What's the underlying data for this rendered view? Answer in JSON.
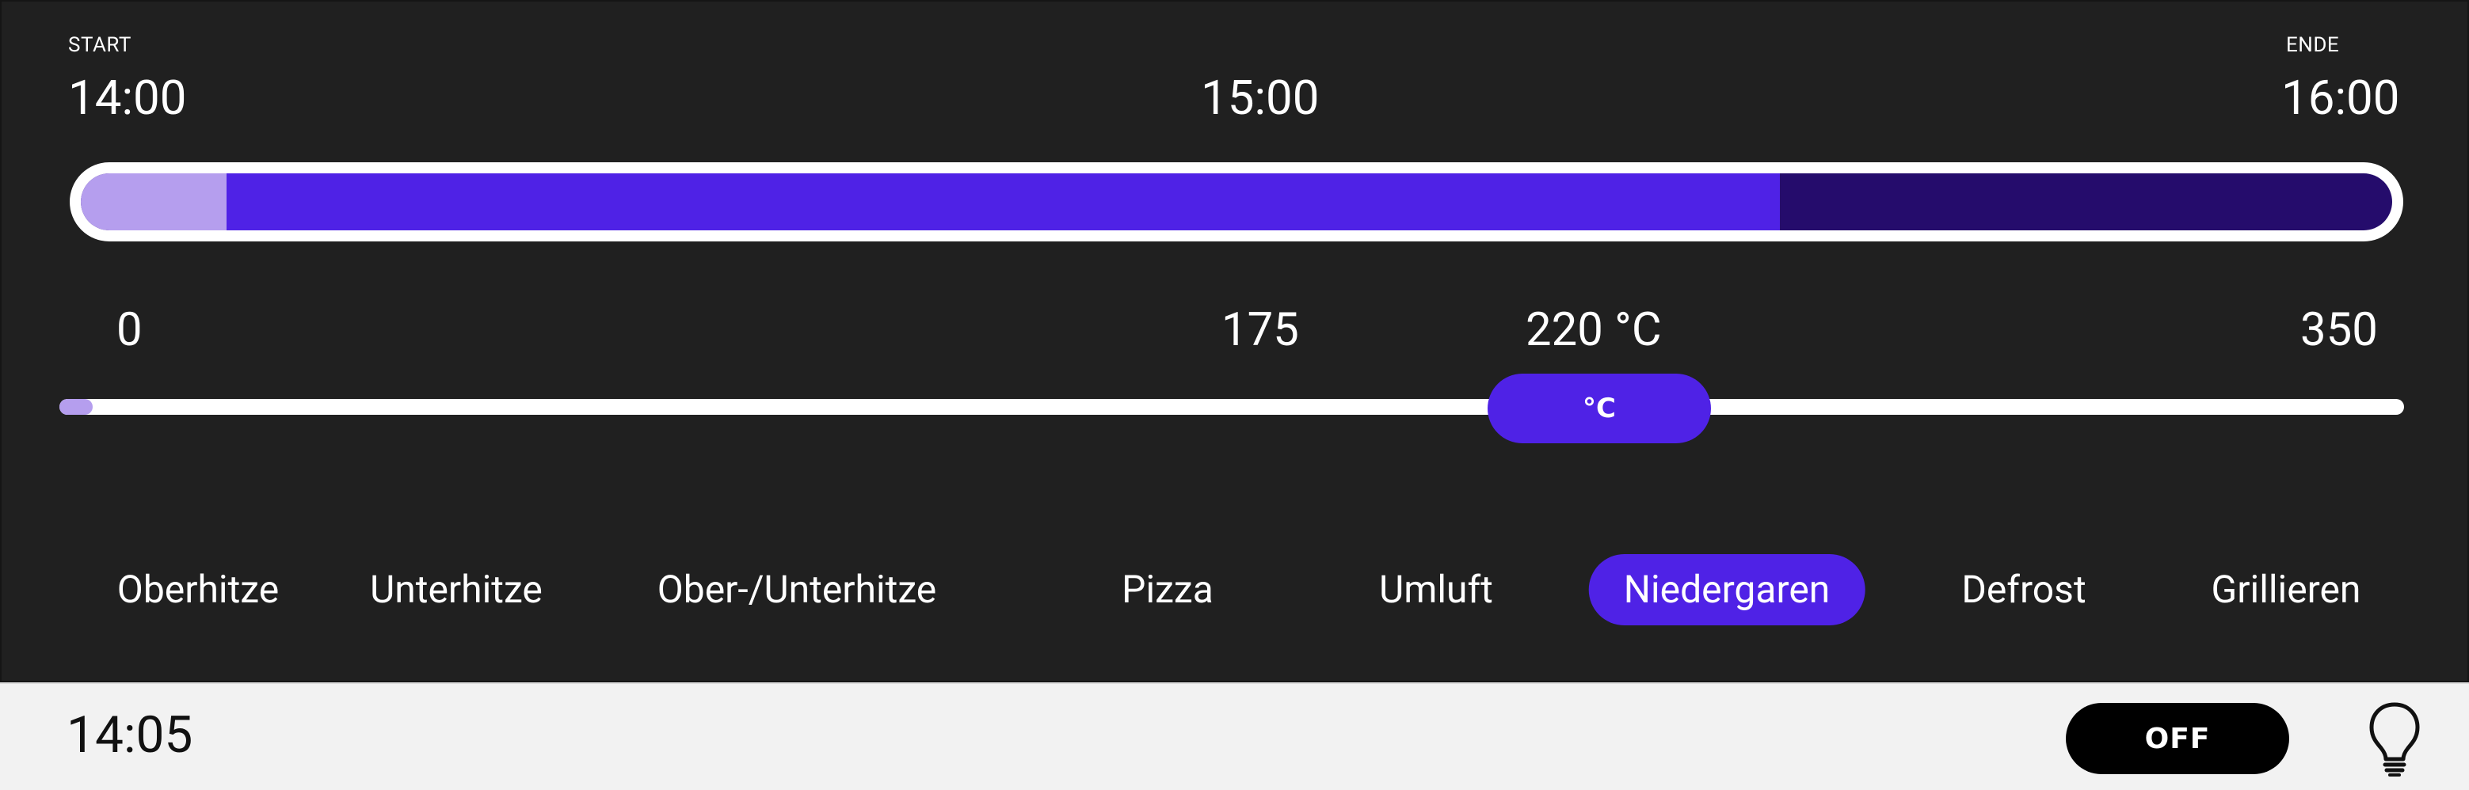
{
  "program": {
    "start_label": "START",
    "end_label": "ENDE",
    "start_time": "14:00",
    "mid_time": "15:00",
    "end_time": "16:00",
    "progress": {
      "elapsed_fraction": 0.063,
      "scheduled_end_fraction": 0.735,
      "colors": {
        "elapsed": "#b59eee",
        "scheduled": "#4f22e6",
        "remaining": "#250c6c"
      }
    }
  },
  "temperature": {
    "min": "0",
    "mid": "175",
    "max": "350",
    "current_label": "220 °C",
    "thumb_label": "°C",
    "value": 220,
    "range": [
      0,
      350
    ]
  },
  "modes": {
    "items": [
      {
        "label": "Oberhitze",
        "active": false
      },
      {
        "label": "Unterhitze",
        "active": false
      },
      {
        "label": "Ober-/Unterhitze",
        "active": false
      },
      {
        "label": "Pizza",
        "active": false
      },
      {
        "label": "Umluft",
        "active": false
      },
      {
        "label": "Niedergaren",
        "active": true
      },
      {
        "label": "Defrost",
        "active": false
      },
      {
        "label": "Grillieren",
        "active": false
      }
    ]
  },
  "status_bar": {
    "clock": "14:05",
    "power_label": "OFF",
    "light_icon": "lightbulb-icon"
  },
  "colors": {
    "accent": "#4f22e6",
    "background": "#202020",
    "status_bar": "#f2f2f2"
  }
}
